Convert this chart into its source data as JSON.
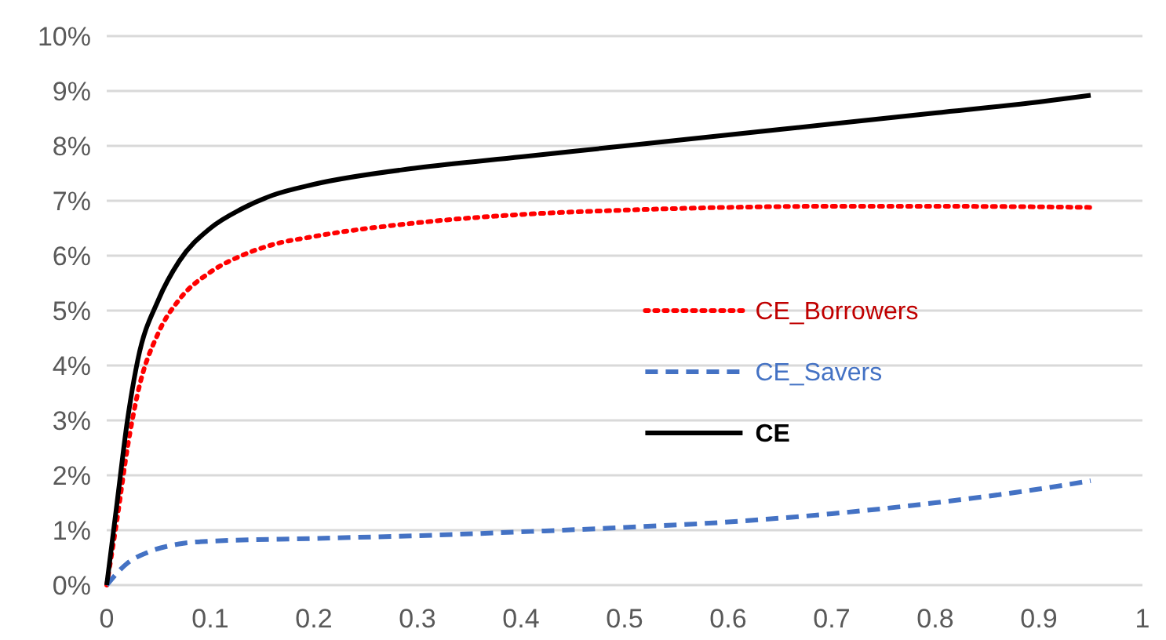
{
  "chart_data": {
    "type": "line",
    "xlim": [
      0,
      1
    ],
    "xticks": [
      0,
      0.1,
      0.2,
      0.3,
      0.4,
      0.5,
      0.6,
      0.7,
      0.8,
      0.9,
      1
    ],
    "ylim": [
      0,
      10
    ],
    "yticks": [
      {
        "value": 0,
        "label": "0%"
      },
      {
        "value": 1,
        "label": "1%"
      },
      {
        "value": 2,
        "label": "2%"
      },
      {
        "value": 3,
        "label": "3%"
      },
      {
        "value": 4,
        "label": "4%"
      },
      {
        "value": 5,
        "label": "5%"
      },
      {
        "value": 6,
        "label": "6%"
      },
      {
        "value": 7,
        "label": "7%"
      },
      {
        "value": 8,
        "label": "8%"
      },
      {
        "value": 9,
        "label": "9%"
      },
      {
        "value": 10,
        "label": "10%"
      }
    ],
    "grid": "y",
    "legend": "right",
    "series": [
      {
        "name": "CE_Borrowers",
        "color": "#ff0000",
        "line_style": "dotted",
        "x": [
          0,
          0.01,
          0.02,
          0.03,
          0.05,
          0.07,
          0.1,
          0.13,
          0.16,
          0.2,
          0.3,
          0.4,
          0.5,
          0.6,
          0.7,
          0.8,
          0.95
        ],
        "values": [
          0,
          1.2,
          2.5,
          3.5,
          4.6,
          5.2,
          5.7,
          6.0,
          6.2,
          6.35,
          6.6,
          6.75,
          6.83,
          6.88,
          6.9,
          6.9,
          6.88
        ]
      },
      {
        "name": "CE_Savers",
        "color": "#4472c4",
        "line_style": "dashed",
        "x": [
          0,
          0.02,
          0.04,
          0.07,
          0.1,
          0.2,
          0.3,
          0.4,
          0.5,
          0.6,
          0.7,
          0.8,
          0.9,
          0.95
        ],
        "values": [
          0,
          0.4,
          0.6,
          0.75,
          0.8,
          0.85,
          0.9,
          0.97,
          1.05,
          1.15,
          1.3,
          1.5,
          1.75,
          1.9
        ]
      },
      {
        "name": "CE",
        "color": "#000000",
        "line_style": "solid",
        "x": [
          0,
          0.01,
          0.02,
          0.03,
          0.05,
          0.07,
          0.1,
          0.13,
          0.16,
          0.2,
          0.3,
          0.4,
          0.5,
          0.6,
          0.7,
          0.8,
          0.9,
          0.95
        ],
        "values": [
          0,
          1.5,
          3,
          4.1,
          5.2,
          5.9,
          6.5,
          6.85,
          7.1,
          7.3,
          7.6,
          7.8,
          8.0,
          8.2,
          8.4,
          8.6,
          8.8,
          8.92
        ]
      }
    ]
  }
}
